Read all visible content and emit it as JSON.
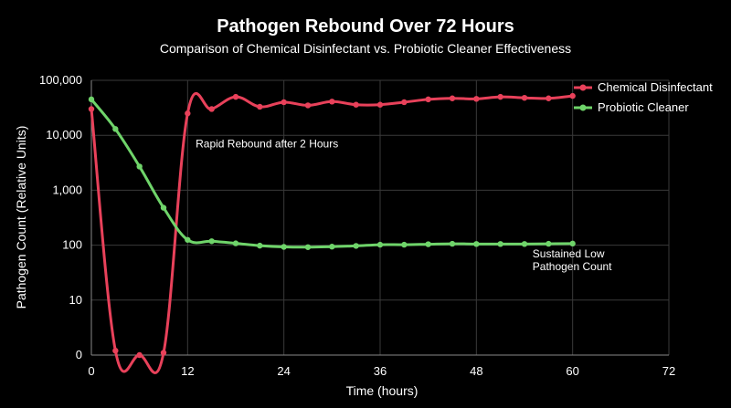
{
  "chart_data": {
    "type": "line",
    "title": "Pathogen Rebound Over 72 Hours",
    "subtitle": "Comparison of Chemical Disinfectant vs. Probiotic Cleaner Effectiveness",
    "xlabel": "Time (hours)",
    "ylabel": "Pathogen Count (Relative Units)",
    "xlim": [
      0,
      72
    ],
    "xticks": [
      0,
      12,
      24,
      36,
      48,
      60,
      72
    ],
    "y_scale": "log",
    "ytick_labels": [
      "0",
      "10",
      "100",
      "1,000",
      "10,000",
      "100,000"
    ],
    "grid": true,
    "legend_position": "top-right",
    "series": [
      {
        "name": "Chemical Disinfectant",
        "color": "#e8415a",
        "x": [
          0,
          3,
          6,
          9,
          12,
          15,
          18,
          21,
          24,
          27,
          30,
          33,
          36,
          39,
          42,
          45,
          48,
          51,
          54,
          57,
          60
        ],
        "y": [
          30000,
          1.2,
          1,
          1.1,
          25000,
          30000,
          50000,
          33000,
          40000,
          35000,
          41000,
          36000,
          36000,
          40000,
          45000,
          47000,
          46000,
          50000,
          48000,
          47000,
          52000
        ]
      },
      {
        "name": "Probiotic Cleaner",
        "color": "#6fd46a",
        "x": [
          0,
          3,
          6,
          9,
          12,
          15,
          18,
          21,
          24,
          27,
          30,
          33,
          36,
          39,
          42,
          45,
          48,
          51,
          54,
          57,
          60
        ],
        "y": [
          45000,
          13000,
          2700,
          480,
          125,
          118,
          108,
          98,
          93,
          92,
          94,
          97,
          102,
          102,
          104,
          106,
          105,
          105,
          105,
          106,
          107
        ]
      }
    ],
    "annotations": [
      {
        "text": "Rapid Rebound after 2 Hours",
        "x": 13,
        "y": 6000
      },
      {
        "text": "Sustained Low",
        "x": 55,
        "y": 60
      },
      {
        "text": "Pathogen Count",
        "x": 55,
        "y": 35
      }
    ]
  }
}
